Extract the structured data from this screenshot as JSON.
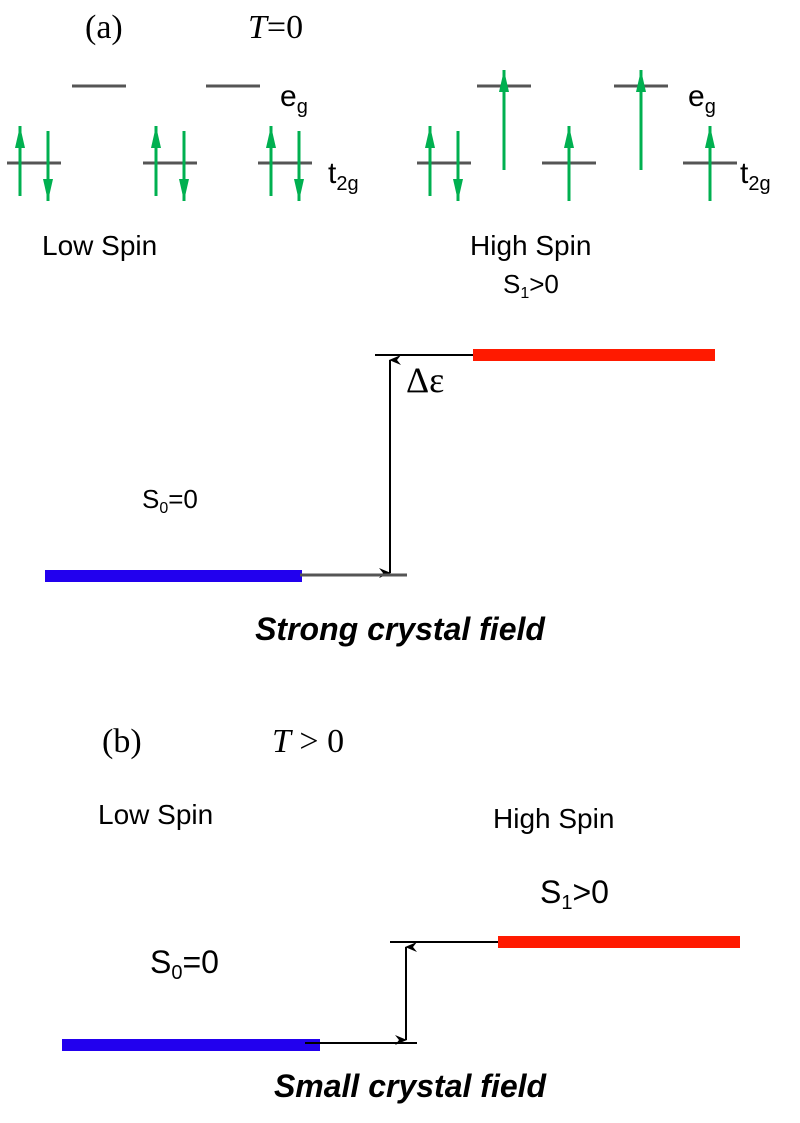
{
  "panel_a": {
    "label": "(a)",
    "temp_var": "T",
    "temp_rel": "=0",
    "eg_label": {
      "main": "e",
      "sub": "g"
    },
    "t2g_label": {
      "main": "t",
      "sub": "2g"
    },
    "low_spin_label": "Low Spin",
    "high_spin_label": "High Spin",
    "s1_label": {
      "main": "S",
      "sub": "1",
      "rest": ">0"
    },
    "s0_label": {
      "main": "S",
      "sub": "0",
      "rest": "=0"
    },
    "gap_label": "Δε",
    "caption": "Strong crystal field",
    "occupancy": {
      "low_spin": {
        "eg": [
          0,
          0
        ],
        "t2g": [
          2,
          2,
          2
        ]
      },
      "high_spin": {
        "eg": [
          1,
          1
        ],
        "t2g": [
          2,
          1,
          1
        ]
      }
    }
  },
  "panel_b": {
    "label": "(b)",
    "temp_var": "T",
    "temp_rel": " > 0",
    "low_spin_label": "Low Spin",
    "high_spin_label": "High Spin",
    "s1_label": {
      "main": "S",
      "sub": "1",
      "rest": ">0"
    },
    "s0_label": {
      "main": "S",
      "sub": "0",
      "rest": "=0"
    },
    "caption": "Small crystal field"
  },
  "colors": {
    "electron_arrow": "#00b050",
    "low_spin_level": "#2200ee",
    "high_spin_level": "#ff1a00",
    "orbital_line": "#555555"
  }
}
